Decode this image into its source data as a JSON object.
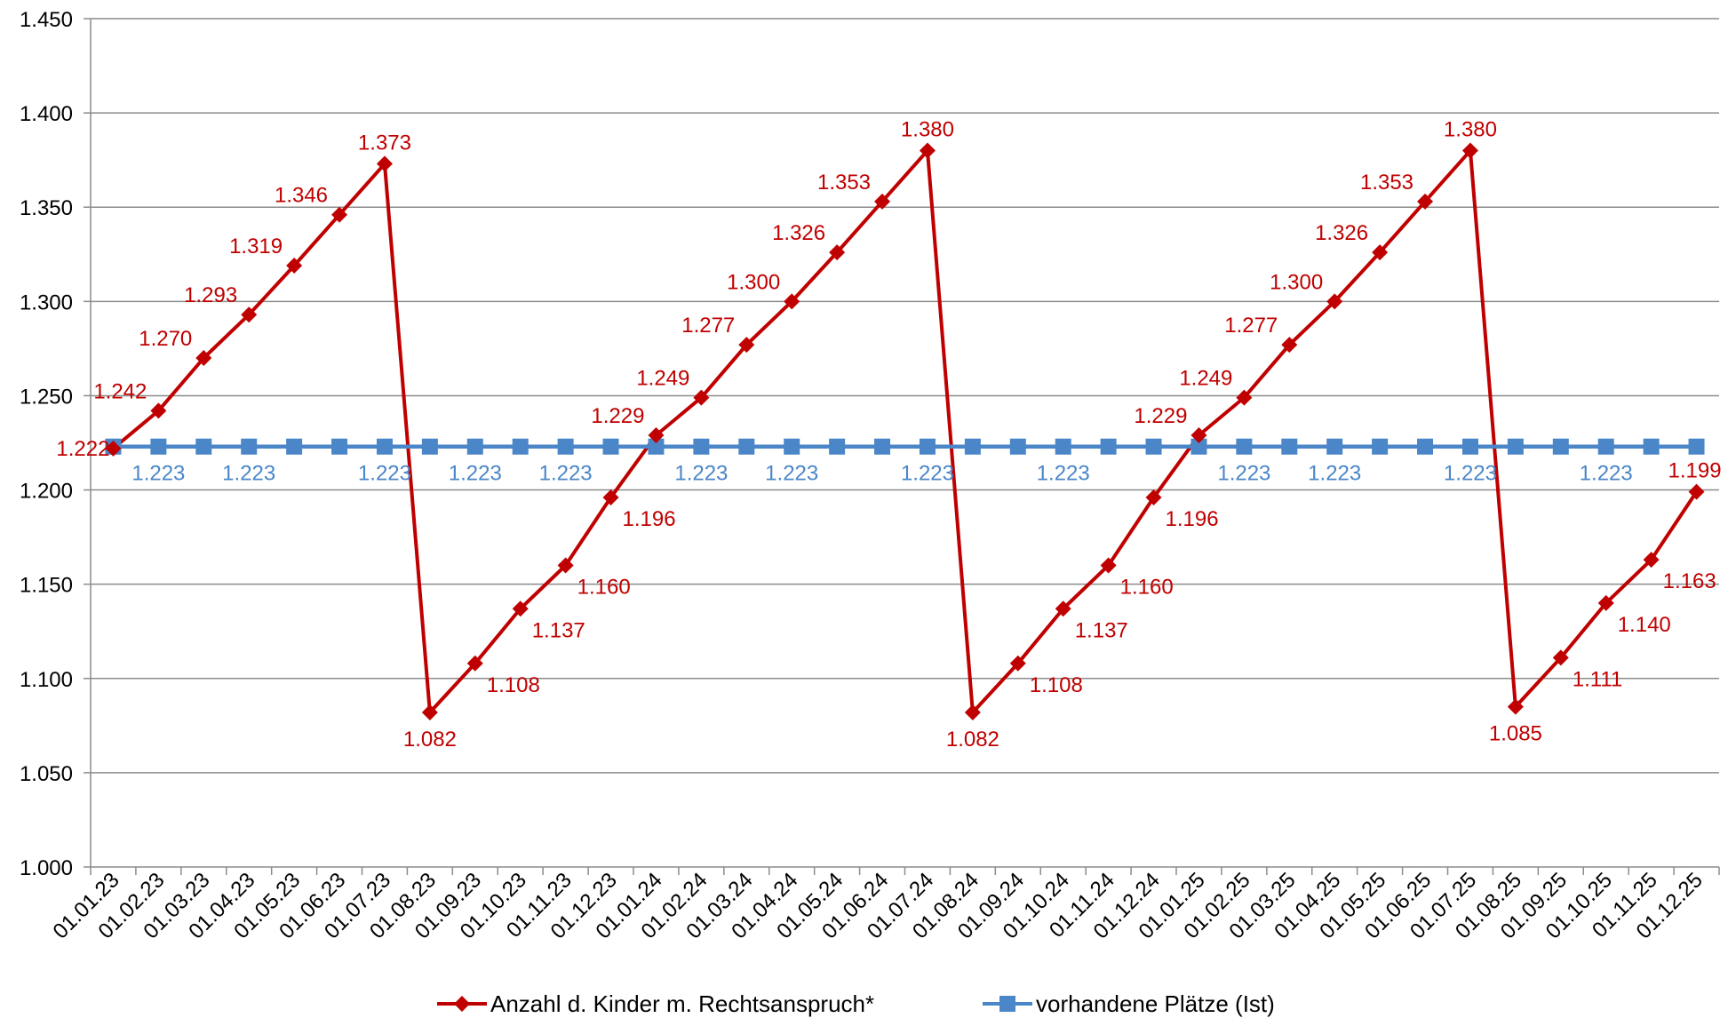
{
  "chart_data": {
    "type": "line",
    "categories": [
      "01.01.23",
      "01.02.23",
      "01.03.23",
      "01.04.23",
      "01.05.23",
      "01.06.23",
      "01.07.23",
      "01.08.23",
      "01.09.23",
      "01.10.23",
      "01.11.23",
      "01.12.23",
      "01.01.24",
      "01.02.24",
      "01.03.24",
      "01.04.24",
      "01.05.24",
      "01.06.24",
      "01.07.24",
      "01.08.24",
      "01.09.24",
      "01.10.24",
      "01.11.24",
      "01.12.24",
      "01.01.25",
      "01.02.25",
      "01.03.25",
      "01.04.25",
      "01.05.25",
      "01.06.25",
      "01.07.25",
      "01.08.25",
      "01.09.25",
      "01.10.25",
      "01.11.25",
      "01.12.25"
    ],
    "series": [
      {
        "name": "Anzahl d. Kinder m. Rechtsanspruch*",
        "color": "#c00000",
        "marker": "diamond",
        "values": [
          1222,
          1242,
          1270,
          1293,
          1319,
          1346,
          1373,
          1082,
          1108,
          1137,
          1160,
          1196,
          1229,
          1249,
          1277,
          1300,
          1326,
          1353,
          1380,
          1082,
          1108,
          1137,
          1160,
          1196,
          1229,
          1249,
          1277,
          1300,
          1326,
          1353,
          1380,
          1085,
          1111,
          1140,
          1163,
          1199
        ],
        "labels": [
          "1.222",
          "1.242",
          "1.270",
          "1.293",
          "1.319",
          "1.346",
          "1.373",
          "1.082",
          "1.108",
          "1.137",
          "1.160",
          "1.196",
          "1.229",
          "1.249",
          "1.277",
          "1.300",
          "1.326",
          "1.353",
          "1.380",
          "1.082",
          "1.108",
          "1.137",
          "1.160",
          "1.196",
          "1.229",
          "1.249",
          "1.277",
          "1.300",
          "1.326",
          "1.353",
          "1.380",
          "1.085",
          "1.111",
          "1.140",
          "1.163",
          "1.199"
        ]
      },
      {
        "name": "vorhandene Plätze (Ist)",
        "color": "#4a86c8",
        "marker": "square",
        "values": [
          1223,
          1223,
          1223,
          1223,
          1223,
          1223,
          1223,
          1223,
          1223,
          1223,
          1223,
          1223,
          1223,
          1223,
          1223,
          1223,
          1223,
          1223,
          1223,
          1223,
          1223,
          1223,
          1223,
          1223,
          1223,
          1223,
          1223,
          1223,
          1223,
          1223,
          1223,
          1223,
          1223,
          1223,
          1223,
          1223
        ],
        "labels": [
          "",
          "1.223",
          "",
          "1.223",
          "",
          "",
          "1.223",
          "",
          "1.223",
          "",
          "1.223",
          "",
          "",
          "1.223",
          "",
          "1.223",
          "",
          "",
          "1.223",
          "",
          "",
          "1.223",
          "",
          "",
          "",
          "1.223",
          "",
          "1.223",
          "",
          "",
          "1.223",
          "",
          "",
          "1.223",
          "",
          ""
        ]
      }
    ],
    "y_ticks": [
      "1.000",
      "1.050",
      "1.100",
      "1.150",
      "1.200",
      "1.250",
      "1.300",
      "1.350",
      "1.400",
      "1.450"
    ],
    "ylim": [
      1000,
      1450
    ],
    "y_step": 50,
    "grid": true,
    "legend": "bottom",
    "title": "",
    "xlabel": "",
    "ylabel": ""
  }
}
